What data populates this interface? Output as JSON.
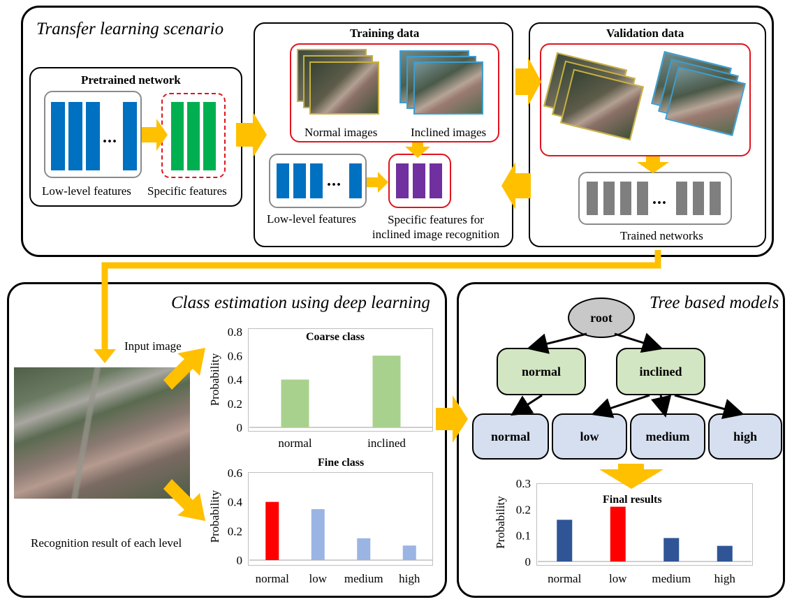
{
  "top_panel": {
    "title": "Transfer learning scenario",
    "pretrained": {
      "title": "Pretrained network",
      "low_label": "Low-level features",
      "specific_label": "Specific features",
      "dots": "..."
    },
    "training": {
      "title": "Training data",
      "normal_label": "Normal images",
      "inclined_label": "Inclined images",
      "low_label": "Low-level features",
      "specific_label": "Specific features for inclined image recognition",
      "dots": "..."
    },
    "validation": {
      "title": "Validation data",
      "trained_label": "Trained networks",
      "dots": "..."
    }
  },
  "class_panel": {
    "title": "Class estimation using deep learning",
    "input_label": "Input image",
    "result_label": "Recognition result of each level"
  },
  "tree_panel": {
    "title": "Tree based models",
    "nodes": {
      "root": "root",
      "normal_mid": "normal",
      "inclined_mid": "inclined",
      "leaf_normal": "normal",
      "leaf_low": "low",
      "leaf_medium": "medium",
      "leaf_high": "high"
    }
  },
  "chart_data": [
    {
      "type": "bar",
      "title": "Coarse class",
      "ylabel": "Probability",
      "categories": [
        "normal",
        "inclined"
      ],
      "values": [
        0.4,
        0.6
      ],
      "colors": [
        "#a9d18e",
        "#a9d18e"
      ],
      "ylim": [
        0,
        0.8
      ],
      "yticks": [
        "0",
        "0.2",
        "0.4",
        "0.6",
        "0.8"
      ],
      "grid": false
    },
    {
      "type": "bar",
      "title": "Fine class",
      "ylabel": "Probability",
      "categories": [
        "normal",
        "low",
        "medium",
        "high"
      ],
      "values": [
        0.4,
        0.35,
        0.15,
        0.1
      ],
      "colors": [
        "#ff0000",
        "#9ab4e3",
        "#9ab4e3",
        "#9ab4e3"
      ],
      "ylim": [
        0,
        0.6
      ],
      "yticks": [
        "0",
        "0.2",
        "0.4",
        "0.6"
      ],
      "grid": false
    },
    {
      "type": "bar",
      "title": "Final results",
      "ylabel": "Probability",
      "categories": [
        "normal",
        "low",
        "medium",
        "high"
      ],
      "values": [
        0.16,
        0.21,
        0.09,
        0.06
      ],
      "colors": [
        "#2f5597",
        "#ff0000",
        "#2f5597",
        "#2f5597"
      ],
      "ylim": [
        0,
        0.3
      ],
      "yticks": [
        "0",
        "0.1",
        "0.2",
        "0.3"
      ],
      "grid": false
    }
  ],
  "colors": {
    "arrow": "#ffc000",
    "blue_block": "#0070c0",
    "green_block": "#00b050",
    "purple_block": "#7030a0",
    "gray_block": "#7f7f7f",
    "red_border": "#e0141e"
  }
}
